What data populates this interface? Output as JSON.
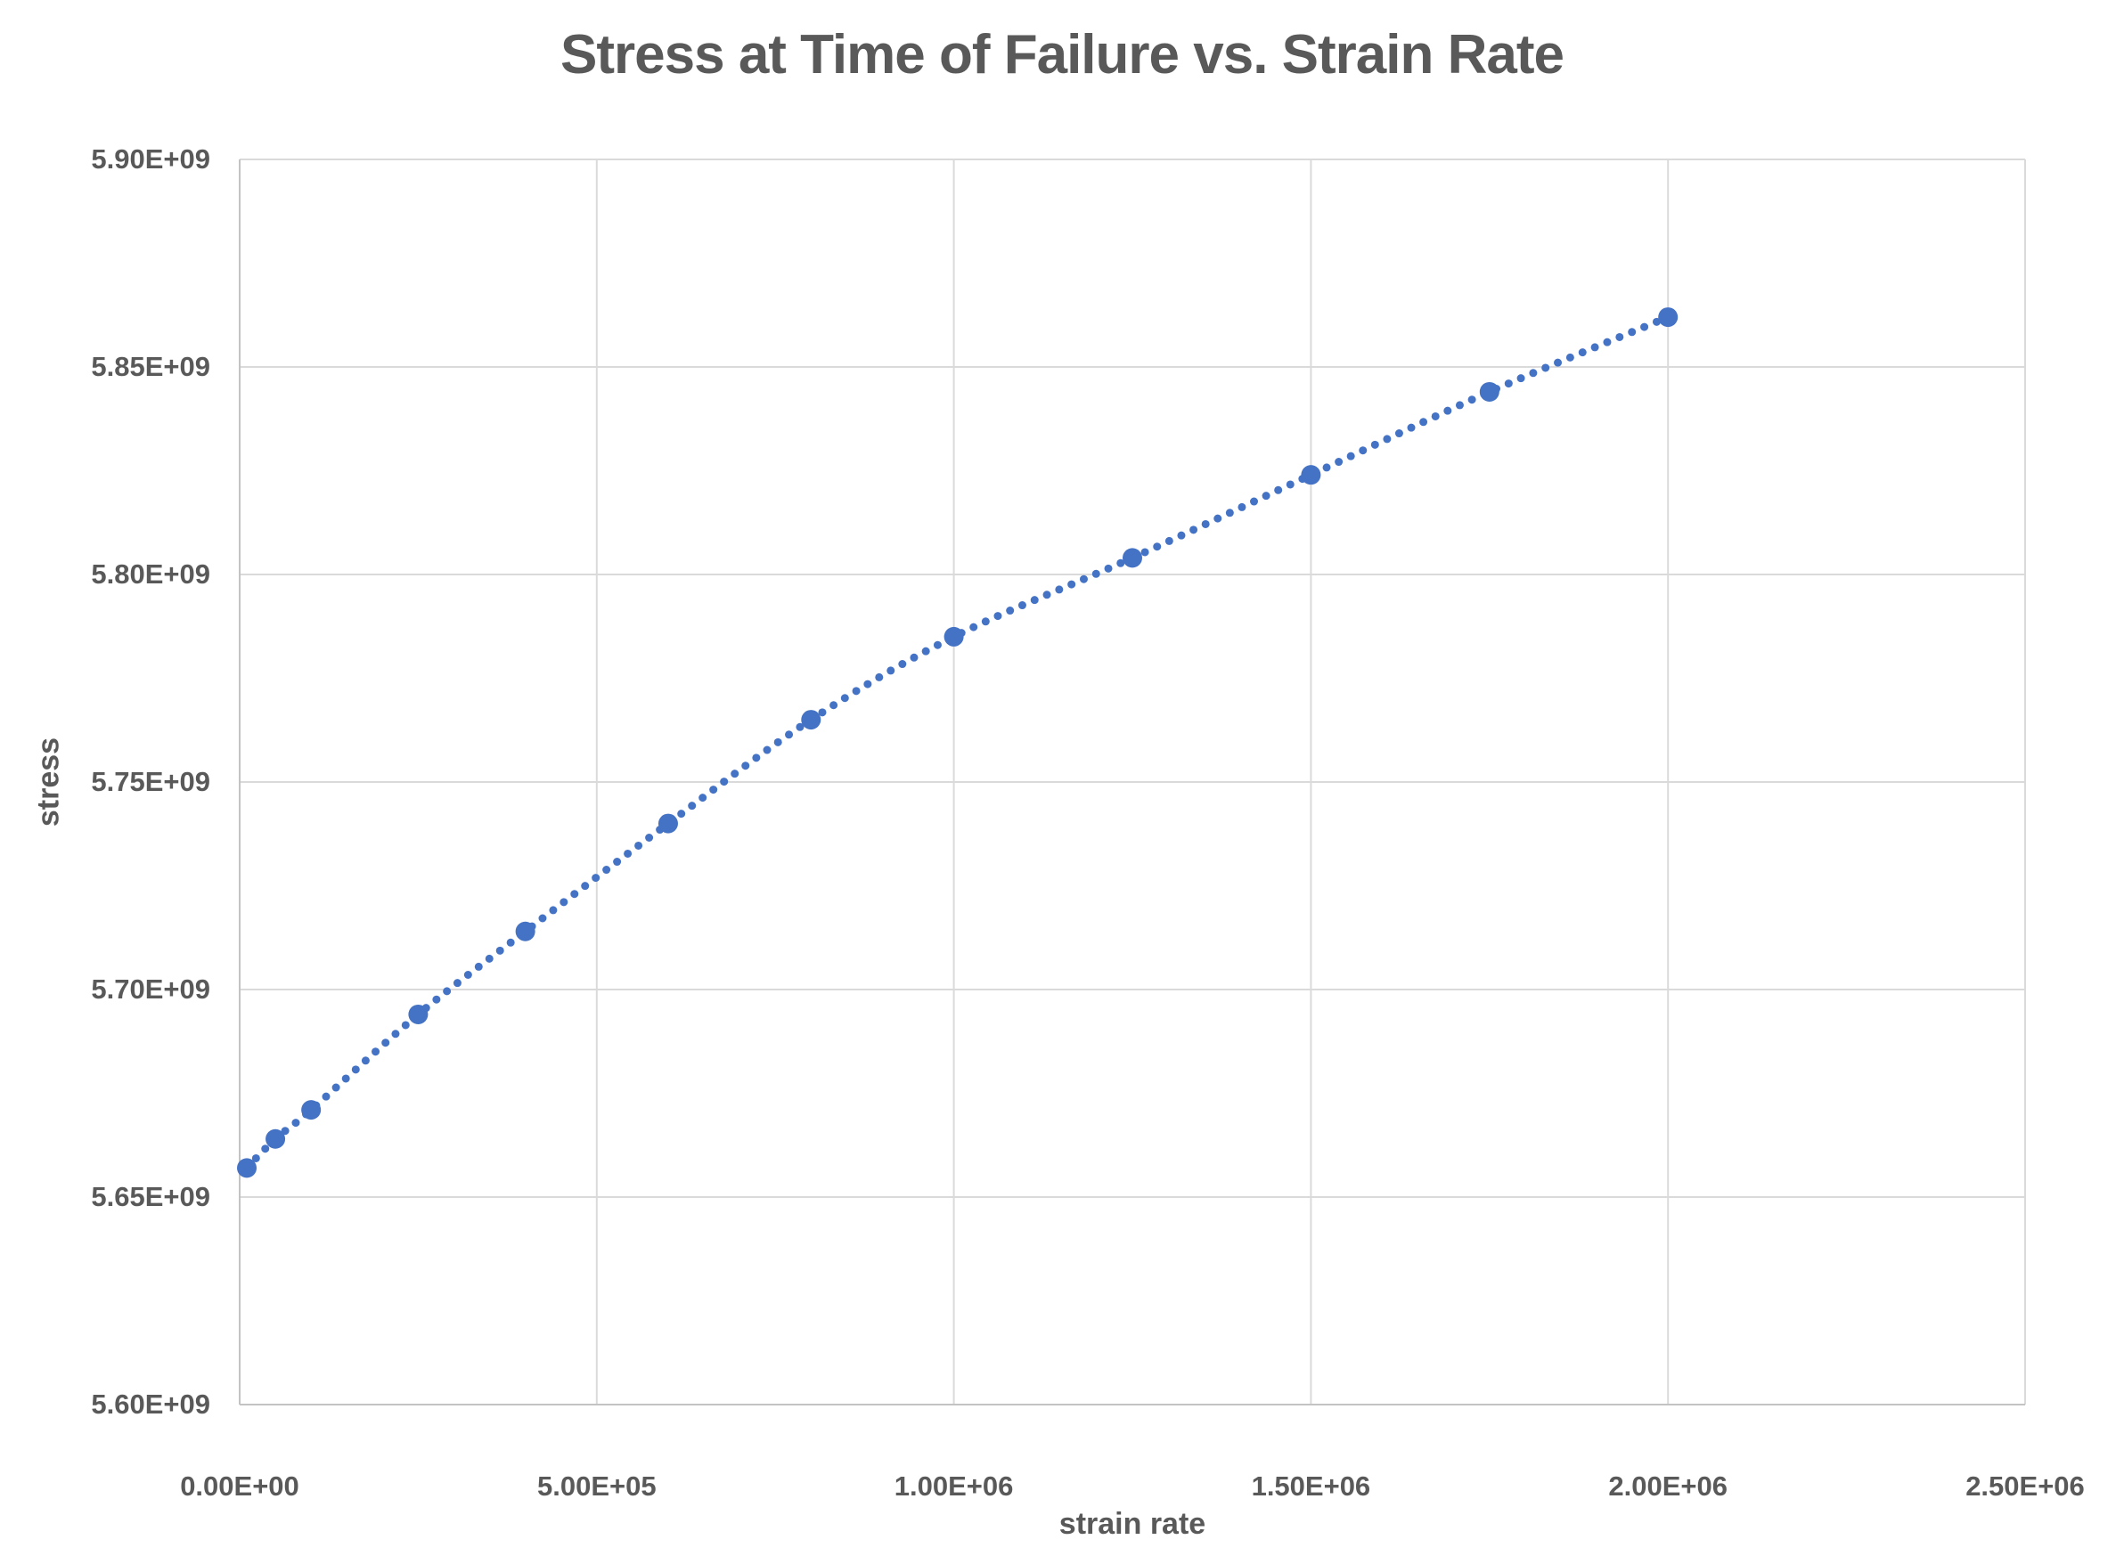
{
  "chart_data": {
    "type": "scatter",
    "title": "Stress at Time of Failure vs. Strain Rate",
    "xlabel": "strain rate",
    "ylabel": "stress",
    "x": [
      10000,
      50000,
      100000,
      250000,
      400000,
      600000,
      800000,
      1000000,
      1250000,
      1500000,
      1750000,
      2000000
    ],
    "y": [
      5657000000.0,
      5664000000.0,
      5671000000.0,
      5694000000.0,
      5714000000.0,
      5740000000.0,
      5765000000.0,
      5785000000.0,
      5804000000.0,
      5824000000.0,
      5844000000.0,
      5862000000.0
    ],
    "xlim": [
      0,
      2500000
    ],
    "ylim": [
      5600000000.0,
      5900000000.0
    ],
    "x_ticks": {
      "values": [
        0,
        500000,
        1000000,
        1500000,
        2000000,
        2500000
      ],
      "labels": [
        "0.00E+00",
        "5.00E+05",
        "1.00E+06",
        "1.50E+06",
        "2.00E+06",
        "2.50E+06"
      ]
    },
    "y_ticks": {
      "values": [
        5600000000.0,
        5650000000.0,
        5700000000.0,
        5750000000.0,
        5800000000.0,
        5850000000.0,
        5900000000.0
      ],
      "labels": [
        "5.60E+09",
        "5.65E+09",
        "5.70E+09",
        "5.75E+09",
        "5.80E+09",
        "5.85E+09",
        "5.90E+09"
      ]
    },
    "grid": true,
    "legend": "none",
    "trendline": {
      "style": "dotted",
      "through_points": true
    },
    "colors": {
      "marker": "#4472C4",
      "trend_dot": "#4472C4",
      "grid": "#DADADA",
      "axis": "#C3C3C3",
      "text": "#595959",
      "background": "#FFFFFF"
    }
  }
}
